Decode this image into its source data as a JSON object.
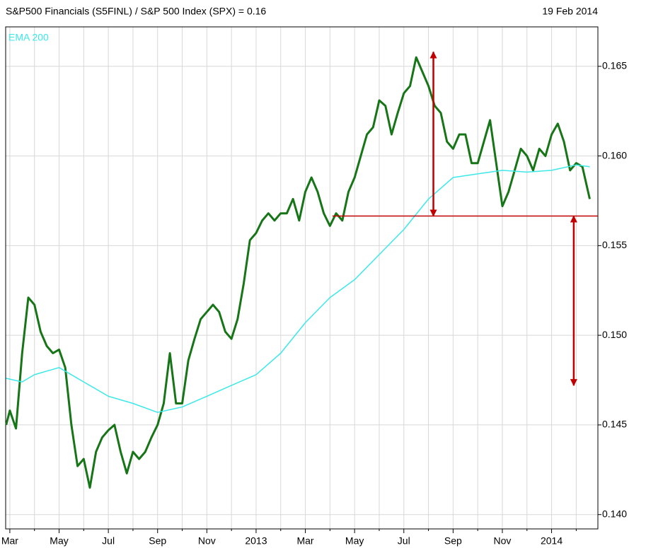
{
  "chart_data": {
    "type": "line",
    "title": "S&P500 Financials (S5FINL) / S&P 500 Index (SPX) = 0.16",
    "date": "19 Feb 2014",
    "xlim": [
      -0.17,
      23.88
    ],
    "xticks": [
      {
        "value": 0,
        "label": "Mar"
      },
      {
        "value": 2,
        "label": "May"
      },
      {
        "value": 4,
        "label": "Jul"
      },
      {
        "value": 6,
        "label": "Sep"
      },
      {
        "value": 8,
        "label": "Nov"
      },
      {
        "value": 10,
        "label": "2013"
      },
      {
        "value": 12,
        "label": "Mar"
      },
      {
        "value": 14,
        "label": "May"
      },
      {
        "value": 16,
        "label": "Jul"
      },
      {
        "value": 18,
        "label": "Sep"
      },
      {
        "value": 20,
        "label": "Nov"
      },
      {
        "value": 22,
        "label": "2014"
      }
    ],
    "xminorticks": [
      1,
      3,
      5,
      7,
      9,
      11,
      13,
      15,
      17,
      19,
      21,
      23
    ],
    "ylim": [
      0.1392,
      0.1672
    ],
    "yticks": [
      {
        "value": 0.14,
        "label": "0.140"
      },
      0.145,
      {
        "value": 0.15,
        "label": "0.150"
      },
      0.155,
      {
        "value": 0.16,
        "label": "0.160"
      },
      0.165
    ],
    "grid": true,
    "series": [
      {
        "color": "#167516",
        "x": [
          -0.15,
          0,
          0.25,
          0.5,
          0.75,
          1,
          1.25,
          1.5,
          1.75,
          2,
          2.25,
          2.5,
          2.75,
          3,
          3.25,
          3.5,
          3.75,
          4,
          4.25,
          4.5,
          4.75,
          5,
          5.25,
          5.5,
          5.75,
          6,
          6.25,
          6.5,
          6.75,
          7,
          7.25,
          7.5,
          7.75,
          8,
          8.25,
          8.5,
          8.75,
          9,
          9.25,
          9.5,
          9.75,
          10,
          10.25,
          10.5,
          10.75,
          11,
          11.25,
          11.5,
          11.75,
          12,
          12.25,
          12.5,
          12.75,
          13,
          13.25,
          13.5,
          13.75,
          14,
          14.25,
          14.5,
          14.75,
          15,
          15.25,
          15.5,
          15.75,
          16,
          16.25,
          16.5,
          16.75,
          17,
          17.25,
          17.5,
          17.75,
          18,
          18.25,
          18.5,
          18.75,
          19,
          19.25,
          19.5,
          19.75,
          20,
          20.25,
          20.5,
          20.75,
          21,
          21.25,
          21.5,
          21.75,
          22,
          22.25,
          22.5,
          22.75,
          23,
          23.25,
          23.55
        ],
        "values": [
          0.145,
          0.1458,
          0.1448,
          0.149,
          0.1521,
          0.1517,
          0.1502,
          0.1494,
          0.149,
          0.1492,
          0.1482,
          0.145,
          0.1427,
          0.1431,
          0.1415,
          0.1435,
          0.1443,
          0.1447,
          0.145,
          0.1435,
          0.1423,
          0.1435,
          0.1431,
          0.1435,
          0.1443,
          0.145,
          0.1462,
          0.149,
          0.1462,
          0.1462,
          0.1486,
          0.1498,
          0.1509,
          0.1513,
          0.1517,
          0.1513,
          0.1502,
          0.1498,
          0.1509,
          0.1529,
          0.1553,
          0.1557,
          0.1564,
          0.1568,
          0.1564,
          0.1568,
          0.1568,
          0.1576,
          0.1564,
          0.158,
          0.1588,
          0.158,
          0.1568,
          0.1561,
          0.1568,
          0.1564,
          0.158,
          0.1588,
          0.16,
          0.1612,
          0.1616,
          0.1631,
          0.1628,
          0.1612,
          0.1624,
          0.1635,
          0.1639,
          0.1655,
          0.1647,
          0.1639,
          0.1628,
          0.1624,
          0.1608,
          0.1604,
          0.1612,
          0.1612,
          0.1596,
          0.1596,
          0.1608,
          0.162,
          0.1596,
          0.1572,
          0.158,
          0.1592,
          0.1604,
          0.16,
          0.1592,
          0.1604,
          0.16,
          0.1612,
          0.1618,
          0.1608,
          0.1592,
          0.1596,
          0.1594,
          0.1576
        ]
      },
      {
        "name": "EMA 200",
        "color": "#3de8e8",
        "x": [
          -0.15,
          0.5,
          1,
          2,
          3,
          4,
          5,
          6,
          7,
          8,
          9,
          10,
          11,
          12,
          13,
          14,
          15,
          16,
          17,
          18,
          19,
          20,
          21,
          22,
          23,
          23.55
        ],
        "values": [
          0.1476,
          0.1474,
          0.1478,
          0.1482,
          0.1474,
          0.1466,
          0.1462,
          0.1457,
          0.146,
          0.1466,
          0.1472,
          0.1478,
          0.149,
          0.1507,
          0.1521,
          0.1531,
          0.1545,
          0.1559,
          0.1576,
          0.1588,
          0.159,
          0.1592,
          0.1591,
          0.1592,
          0.1595,
          0.1594
        ]
      }
    ],
    "annotations": {
      "color": "#c00000",
      "level": 0.15665,
      "level_start": 13.1,
      "arrows": [
        {
          "x": 17.2,
          "from": 0.15665,
          "to": 0.1658
        },
        {
          "x": 22.9,
          "from": 0.15665,
          "to": 0.1472
        }
      ]
    }
  }
}
